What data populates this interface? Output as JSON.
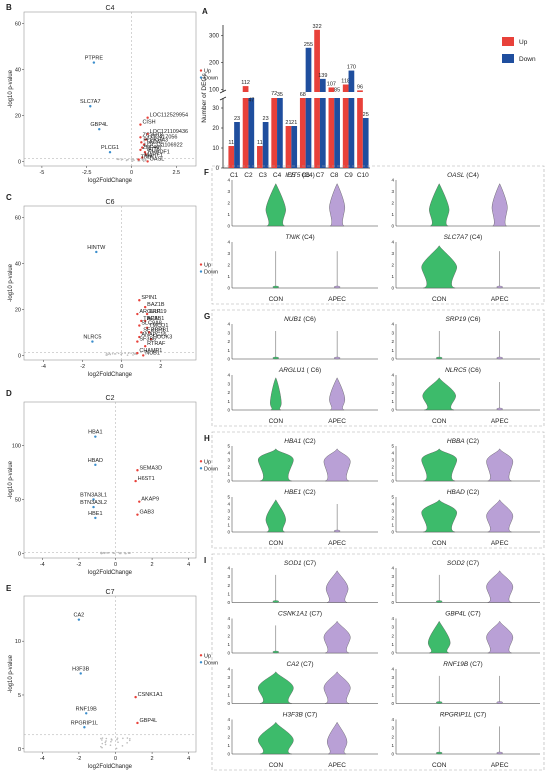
{
  "colors": {
    "up": "#e8413a",
    "down": "#1f4e9e",
    "dn_light": "#3a8dcc",
    "con": "#3dbb6b",
    "apec": "#b9a0d6",
    "grid": "#d6d6d6"
  },
  "panel_letters": {
    "A": "A",
    "B": "B",
    "C": "C",
    "D": "D",
    "E": "E",
    "F": "F",
    "G": "G",
    "H": "H",
    "I": "I"
  },
  "chart_data": [
    {
      "panel": "A",
      "type": "bar",
      "categories": [
        "C1",
        "C2",
        "C3",
        "C4",
        "C5",
        "C6",
        "C7",
        "C8",
        "C9",
        "C10"
      ],
      "series": [
        {
          "name": "Up",
          "values": [
            11,
            112,
            11,
            72,
            21,
            68,
            322,
            107,
            118,
            96
          ]
        },
        {
          "name": "Down",
          "values": [
            23,
            47,
            23,
            35,
            21,
            255,
            139,
            85,
            170,
            25
          ]
        }
      ],
      "ylabel": "Number of DEGs",
      "y_lower_ticks": [
        0,
        10,
        20,
        30
      ],
      "y_upper_ticks": [
        100,
        200,
        300
      ],
      "legend": [
        "Up",
        "Down"
      ]
    },
    {
      "panel": "B",
      "type": "scatter",
      "title": "C4",
      "xlabel": "log2FoldChange",
      "ylabel": "-log10 p-value",
      "xlim": [
        -6,
        3.6
      ],
      "ylim": [
        -2,
        65
      ],
      "xticks": [
        -5,
        -2.5,
        0,
        2.5
      ],
      "yticks": [
        0,
        20,
        40,
        60
      ],
      "legend": [
        "Up",
        "Down"
      ],
      "down_points": [
        {
          "label": "PTPRE",
          "x": -2.1,
          "y": 43
        },
        {
          "label": "SLC7A7",
          "x": -2.3,
          "y": 24
        },
        {
          "label": "GBP4L",
          "x": -1.8,
          "y": 14
        },
        {
          "label": "PLCG1",
          "x": -1.2,
          "y": 4
        }
      ],
      "up_points": [
        {
          "label": "LOC112529954",
          "x": 0.9,
          "y": 19
        },
        {
          "label": "CISH",
          "x": 0.5,
          "y": 16
        },
        {
          "label": "LOC121109436",
          "x": 0.9,
          "y": 12
        },
        {
          "label": "ZC3H18",
          "x": 0.5,
          "y": 10.5
        },
        {
          "label": "LOC417056",
          "x": 0.8,
          "y": 9.5
        },
        {
          "label": "PLEKHA3",
          "x": 0.55,
          "y": 8.3
        },
        {
          "label": "TADA1",
          "x": 0.7,
          "y": 7.3
        },
        {
          "label": "LOC121106922",
          "x": 0.6,
          "y": 6
        },
        {
          "label": "ZNF407",
          "x": 0.5,
          "y": 5
        },
        {
          "label": "IFIT5",
          "x": 0.75,
          "y": 4
        },
        {
          "label": "RHBDF1",
          "x": 0.8,
          "y": 3
        },
        {
          "label": "MARF1",
          "x": 0.6,
          "y": 1.7
        },
        {
          "label": "TNIK",
          "x": 0.4,
          "y": 0.8
        },
        {
          "label": "OASL",
          "x": 0.9,
          "y": 0
        }
      ]
    },
    {
      "panel": "C",
      "type": "scatter",
      "title": "C6",
      "xlabel": "log2FoldChange",
      "ylabel": "-log10 p-value",
      "xlim": [
        -5,
        3.8
      ],
      "ylim": [
        -2,
        65
      ],
      "xticks": [
        -4,
        -2,
        0,
        2
      ],
      "yticks": [
        0,
        20,
        40,
        60
      ],
      "legend": [
        "Up",
        "Down"
      ],
      "down_points": [
        {
          "label": "HINTW",
          "x": -1.3,
          "y": 45
        },
        {
          "label": "NLRC5",
          "x": -1.5,
          "y": 6
        }
      ],
      "up_points": [
        {
          "label": "SPIN1",
          "x": 0.9,
          "y": 24
        },
        {
          "label": "BAZ1B",
          "x": 1.2,
          "y": 21
        },
        {
          "label": "ARGLU1",
          "x": 0.8,
          "y": 18
        },
        {
          "label": "SRP19",
          "x": 1.3,
          "y": 18
        },
        {
          "label": "TBCA",
          "x": 1.0,
          "y": 15
        },
        {
          "label": "AP3B1",
          "x": 1.2,
          "y": 15
        },
        {
          "label": "SLC9A8",
          "x": 0.9,
          "y": 13
        },
        {
          "label": "TMCO1",
          "x": 1.3,
          "y": 12
        },
        {
          "label": "SERBP1",
          "x": 1.0,
          "y": 10
        },
        {
          "label": "ZCRB1",
          "x": 1.4,
          "y": 10
        },
        {
          "label": "ANAPC15",
          "x": 0.9,
          "y": 8
        },
        {
          "label": "HOOK3",
          "x": 1.5,
          "y": 7
        },
        {
          "label": "SF3B6",
          "x": 0.8,
          "y": 6
        },
        {
          "label": "RTRAF",
          "x": 1.2,
          "y": 4
        },
        {
          "label": "CHAMP1",
          "x": 0.8,
          "y": 1
        },
        {
          "label": "NUB1",
          "x": 1.1,
          "y": 0
        }
      ]
    },
    {
      "panel": "D",
      "type": "scatter",
      "title": "C2",
      "xlabel": "log2FoldChange",
      "ylabel": "-log10 p-value",
      "xlim": [
        -5,
        4.4
      ],
      "ylim": [
        -4,
        140
      ],
      "xticks": [
        -4,
        -2,
        0,
        2,
        4
      ],
      "yticks": [
        0,
        50,
        100
      ],
      "legend": [
        "Up",
        "Down"
      ],
      "down_points": [
        {
          "label": "HBA1",
          "x": -1.1,
          "y": 108
        },
        {
          "label": "HBAD",
          "x": -1.1,
          "y": 82
        },
        {
          "label": "BTN3A3L1",
          "x": -1.2,
          "y": 50
        },
        {
          "label": "BTN3A3L2",
          "x": -1.2,
          "y": 43
        },
        {
          "label": "HBE1",
          "x": -1.1,
          "y": 33
        }
      ],
      "up_points": [
        {
          "label": "SEMA3D",
          "x": 1.2,
          "y": 77
        },
        {
          "label": "H6ST1",
          "x": 1.1,
          "y": 67
        },
        {
          "label": "AKAP9",
          "x": 1.3,
          "y": 48
        },
        {
          "label": "GAB3",
          "x": 1.2,
          "y": 36
        }
      ]
    },
    {
      "panel": "E",
      "type": "scatter",
      "title": "C7",
      "xlabel": "log2FoldChange",
      "ylabel": "-log10 p-value",
      "xlim": [
        -5,
        4.4
      ],
      "ylim": [
        -0.3,
        14.2
      ],
      "xticks": [
        -4,
        -2,
        0,
        2,
        4
      ],
      "yticks": [
        0,
        5,
        10
      ],
      "legend": [
        "Up",
        "Down"
      ],
      "down_points": [
        {
          "label": "CA2",
          "x": -2.0,
          "y": 12
        },
        {
          "label": "H3F3B",
          "x": -1.9,
          "y": 7
        },
        {
          "label": "RNF19B",
          "x": -1.6,
          "y": 3.3
        },
        {
          "label": "RPGRIP1L",
          "x": -1.7,
          "y": 2
        }
      ],
      "up_points": [
        {
          "label": "CSNK1A1",
          "x": 1.1,
          "y": 4.8
        },
        {
          "label": "GBP4L",
          "x": 1.2,
          "y": 2.4
        }
      ]
    }
  ],
  "violins": {
    "ytick_labels": {
      "four": [
        "0",
        "1",
        "2",
        "3",
        "4"
      ],
      "five": [
        "0",
        "1",
        "2",
        "3",
        "4",
        "5"
      ]
    },
    "x_labels": [
      "CON",
      "APEC"
    ],
    "panels": [
      {
        "letter": "F",
        "rows": [
          [
            {
              "gene": "IFIT5",
              "cluster": "(C4)",
              "ymax": 4
            },
            {
              "gene": "OASL",
              "cluster": "(C4)",
              "ymax": 4
            }
          ],
          [
            {
              "gene": "TNIK",
              "cluster": "(C4)",
              "ymax": 4
            },
            {
              "gene": "SLC7A7",
              "cluster": "(C4)",
              "ymax": 4
            }
          ]
        ]
      },
      {
        "letter": "G",
        "rows": [
          [
            {
              "gene": "NUB1",
              "cluster": "(C6)",
              "ymax": 4
            },
            {
              "gene": "SRP19",
              "cluster": "(C6)",
              "ymax": 4
            }
          ],
          [
            {
              "gene": "ARGLU1",
              "cluster": "( C6)",
              "ymax": 4
            },
            {
              "gene": "NLRC5",
              "cluster": "(C6)",
              "ymax": 4
            }
          ]
        ]
      },
      {
        "letter": "H",
        "rows": [
          [
            {
              "gene": "HBA1",
              "cluster": "(C2)",
              "ymax": 5
            },
            {
              "gene": "HBBA",
              "cluster": "(C2)",
              "ymax": 5
            }
          ],
          [
            {
              "gene": "HBE1",
              "cluster": "(C2)",
              "ymax": 5
            },
            {
              "gene": "HBAD",
              "cluster": "(C2)",
              "ymax": 5
            }
          ]
        ]
      },
      {
        "letter": "I",
        "rows": [
          [
            {
              "gene": "SOD1",
              "cluster": "(C7)",
              "ymax": 4
            },
            {
              "gene": "SOD2",
              "cluster": "(C7)",
              "ymax": 4
            }
          ],
          [
            {
              "gene": "CSNK1A1",
              "cluster": "(C7)",
              "ymax": 4
            },
            {
              "gene": "GBP4L",
              "cluster": "(C7)",
              "ymax": 4
            }
          ],
          [
            {
              "gene": "CA2",
              "cluster": "(C7)",
              "ymax": 4
            },
            {
              "gene": "RNF19B",
              "cluster": "(C7)",
              "ymax": 4
            }
          ],
          [
            {
              "gene": "H3F3B",
              "cluster": "(C7)",
              "ymax": 4
            },
            {
              "gene": "RPGRIP1L",
              "cluster": "(C7)",
              "ymax": 4
            }
          ]
        ]
      }
    ]
  }
}
